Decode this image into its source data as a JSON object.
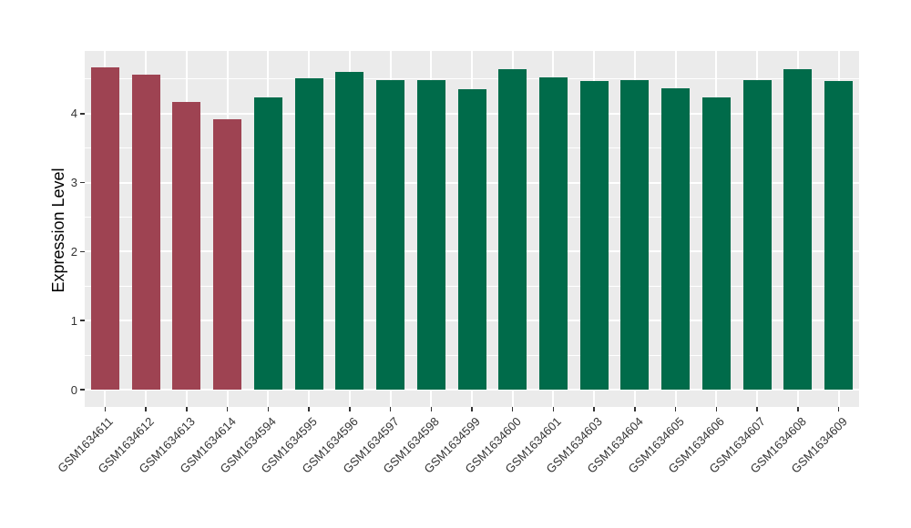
{
  "chart_data": {
    "type": "bar",
    "title": "",
    "xlabel": "",
    "ylabel": "Expression Level",
    "ylim": [
      0,
      4.9
    ],
    "y_ticks": [
      0,
      1,
      2,
      3,
      4
    ],
    "y_minor_ticks": [
      0.5,
      1.5,
      2.5,
      3.5,
      4.5
    ],
    "grid": "on",
    "legend": "none",
    "panel_background_color": "#EBEBEB",
    "gridline_color": "#FFFFFF",
    "axis_text_color": "#333333",
    "group_colors": {
      "left-group": "#9E4352",
      "right-group": "#006B4A"
    },
    "categories": [
      "GSM1634611",
      "GSM1634612",
      "GSM1634613",
      "GSM1634614",
      "GSM1634594",
      "GSM1634595",
      "GSM1634596",
      "GSM1634597",
      "GSM1634598",
      "GSM1634599",
      "GSM1634600",
      "GSM1634601",
      "GSM1634603",
      "GSM1634604",
      "GSM1634605",
      "GSM1634606",
      "GSM1634607",
      "GSM1634608",
      "GSM1634609"
    ],
    "values": [
      4.67,
      4.56,
      4.17,
      3.92,
      4.23,
      4.51,
      4.6,
      4.48,
      4.48,
      4.35,
      4.64,
      4.52,
      4.47,
      4.49,
      4.37,
      4.23,
      4.49,
      4.64,
      4.47
    ],
    "bar_colors": [
      "#9E4352",
      "#9E4352",
      "#9E4352",
      "#9E4352",
      "#006B4A",
      "#006B4A",
      "#006B4A",
      "#006B4A",
      "#006B4A",
      "#006B4A",
      "#006B4A",
      "#006B4A",
      "#006B4A",
      "#006B4A",
      "#006B4A",
      "#006B4A",
      "#006B4A",
      "#006B4A",
      "#006B4A"
    ]
  }
}
